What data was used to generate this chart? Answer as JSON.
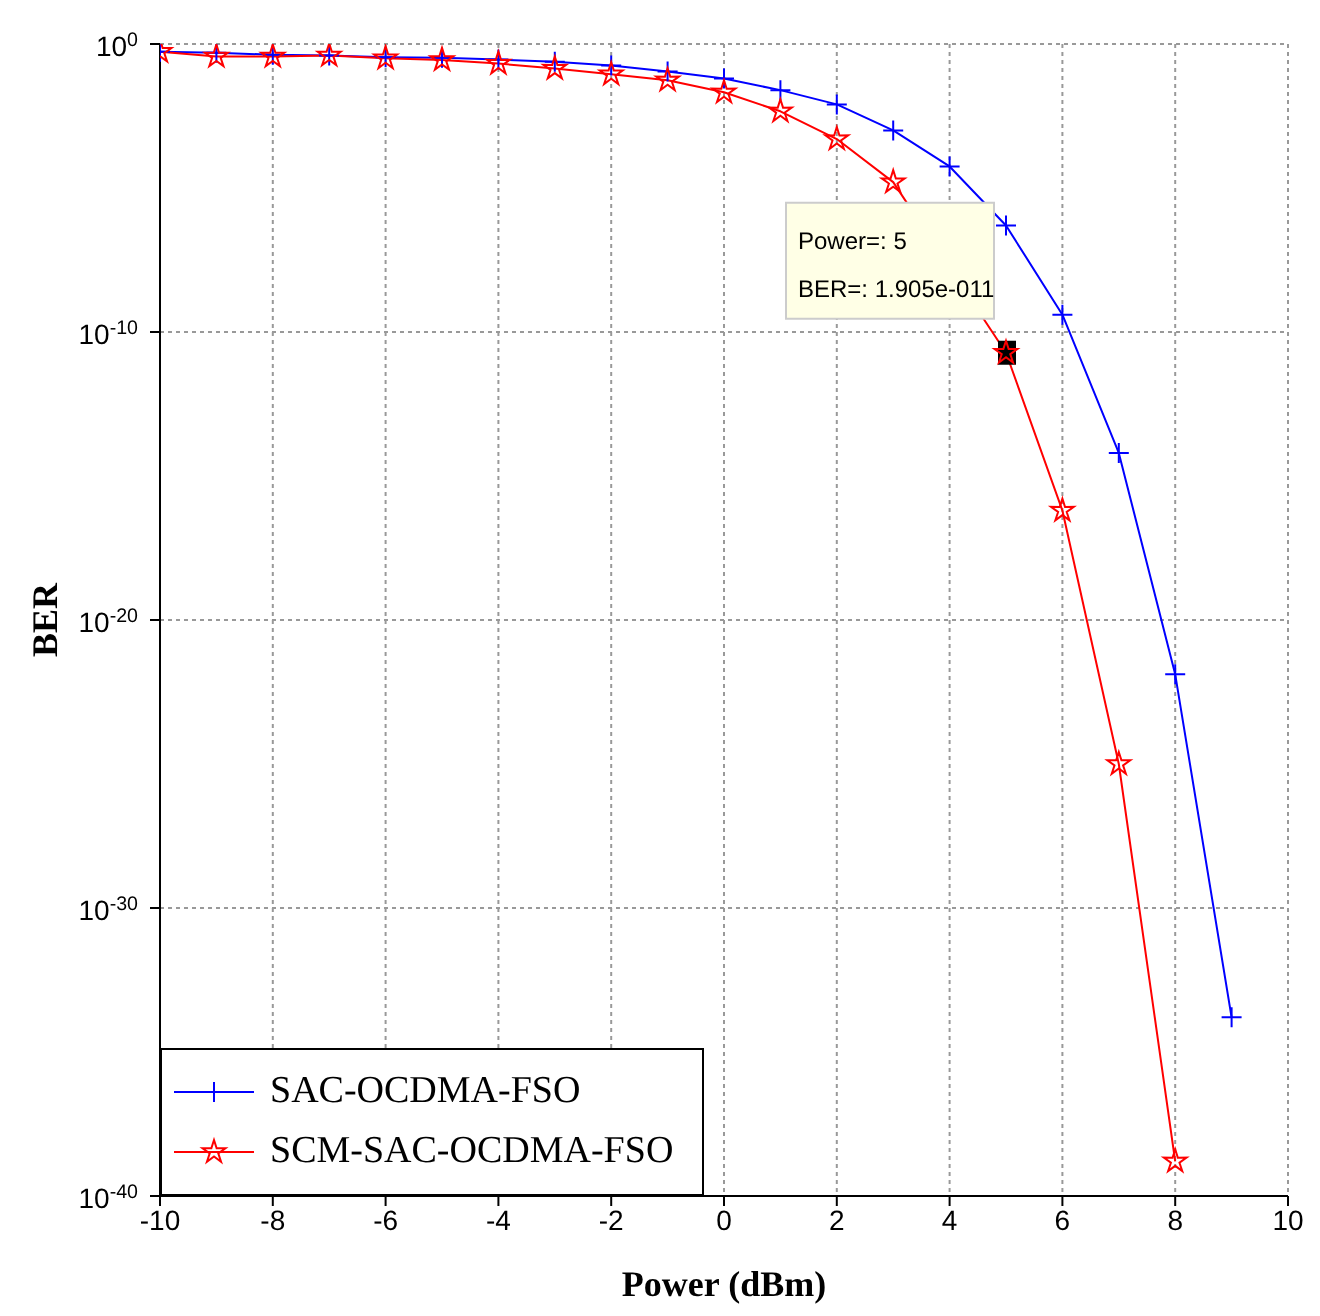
{
  "chart_data": {
    "type": "line",
    "xlabel": "Power (dBm)",
    "ylabel": "BER",
    "x": [
      -10,
      -9,
      -8,
      -7,
      -6,
      -5,
      -4,
      -3,
      -2,
      -1,
      0,
      1,
      2,
      3,
      4,
      5,
      6,
      7,
      8,
      9
    ],
    "series": [
      {
        "name": "SAC-OCDMA-FSO",
        "color": "#0000ff",
        "marker": "cross",
        "values": [
          0.54,
          0.5,
          0.42,
          0.4,
          0.35,
          0.33,
          0.29,
          0.24,
          0.18,
          0.11,
          0.063,
          0.025,
          0.008,
          0.001,
          5.6e-05,
          5e-07,
          4e-10,
          6.3e-15,
          1.3e-22,
          1.6e-34
        ]
      },
      {
        "name": "SCM-SAC-OCDMA-FSO",
        "color": "#ff0000",
        "marker": "star",
        "values": [
          0.54,
          0.37,
          0.37,
          0.4,
          0.32,
          0.28,
          0.21,
          0.14,
          0.089,
          0.055,
          0.021,
          0.0046,
          0.0005,
          1.6e-05,
          null,
          1.905e-11,
          6.3e-17,
          1e-25,
          1.6e-39,
          null
        ]
      }
    ],
    "log": "y",
    "xlim": [
      -10,
      10
    ],
    "xticks": [
      -10,
      -8,
      -6,
      -4,
      -2,
      0,
      2,
      4,
      6,
      8,
      10
    ],
    "ylim": [
      1e-40,
      1
    ],
    "yticks": [
      {
        "value": 1,
        "label": "10$^{0}$"
      },
      {
        "value": 1e-10,
        "label": "10$^{-10}$"
      },
      {
        "value": 1e-20,
        "label": "10$^{-20}$"
      },
      {
        "value": 1e-30,
        "label": "10$^{-30}$"
      },
      {
        "value": 1e-40,
        "label": "10$^{-40}$"
      }
    ],
    "grid": true,
    "legend": "bottom left",
    "annotations": [
      {
        "text": "Power=: 5\nBER=: 1.905e-011",
        "x": 5,
        "y": 1.905e-11
      }
    ]
  }
}
